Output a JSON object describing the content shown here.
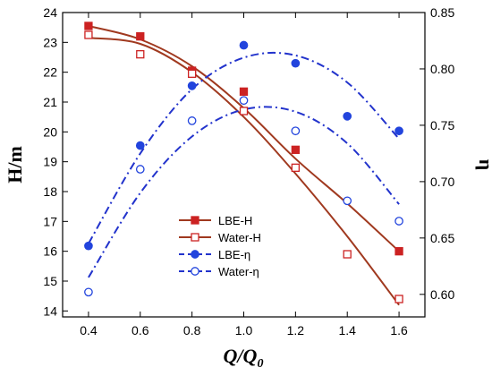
{
  "chart_data": {
    "type": "scatter",
    "title": "",
    "xlabel": "Q/Q",
    "xlabel_sub": "0",
    "ylabel_left": "H/m",
    "ylabel_right": "η",
    "xlim": [
      0.3,
      1.7
    ],
    "ylim_left": [
      13.8,
      24.0
    ],
    "ylim_right": [
      0.58,
      0.85
    ],
    "x_ticks": [
      "0.4",
      "0.6",
      "0.8",
      "1.0",
      "1.2",
      "1.4",
      "1.6"
    ],
    "y_left_ticks": [
      "14",
      "15",
      "16",
      "17",
      "18",
      "19",
      "20",
      "21",
      "22",
      "23",
      "24"
    ],
    "y_right_ticks": [
      "0.60",
      "0.65",
      "0.70",
      "0.75",
      "0.80",
      "0.85"
    ],
    "legend_position": "lower-center",
    "series": [
      {
        "name": "LBE-H",
        "axis": "left",
        "marker": "filled-square",
        "color": "#cc2222",
        "line_color": "#a0391f",
        "x": [
          0.4,
          0.6,
          0.8,
          1.0,
          1.2,
          1.6
        ],
        "y": [
          23.55,
          23.2,
          22.05,
          21.35,
          19.4,
          16.0
        ],
        "fit_x": [
          0.4,
          0.6,
          0.8,
          1.0,
          1.2,
          1.4,
          1.6
        ],
        "fit_y": [
          23.55,
          23.1,
          22.2,
          20.8,
          19.1,
          17.6,
          16.0
        ]
      },
      {
        "name": "Water-H",
        "axis": "left",
        "marker": "open-square",
        "color": "#cc2222",
        "line_color": "#a0391f",
        "x": [
          0.4,
          0.6,
          0.8,
          1.0,
          1.2,
          1.4,
          1.6
        ],
        "y": [
          23.25,
          22.6,
          21.95,
          20.7,
          18.8,
          15.9,
          14.4
        ],
        "fit_x": [
          0.4,
          0.6,
          0.8,
          1.0,
          1.2,
          1.4,
          1.6
        ],
        "fit_y": [
          23.15,
          22.95,
          22.0,
          20.5,
          18.6,
          16.5,
          14.2
        ]
      },
      {
        "name": "LBE-η",
        "axis": "right",
        "marker": "filled-circle",
        "color": "#2244dd",
        "line_color": "#2233cc",
        "x": [
          0.4,
          0.6,
          0.8,
          1.0,
          1.2,
          1.4,
          1.6
        ],
        "y": [
          0.643,
          0.732,
          0.785,
          0.821,
          0.805,
          0.758,
          0.745
        ],
        "fit_x": [
          0.4,
          0.6,
          0.8,
          1.0,
          1.2,
          1.4,
          1.6
        ],
        "fit_y": [
          0.645,
          0.725,
          0.782,
          0.81,
          0.812,
          0.788,
          0.738
        ]
      },
      {
        "name": "Water-η",
        "axis": "right",
        "marker": "open-circle",
        "color": "#2244dd",
        "line_color": "#2233cc",
        "x": [
          0.4,
          0.6,
          0.8,
          1.0,
          1.2,
          1.4,
          1.6
        ],
        "y": [
          0.602,
          0.711,
          0.754,
          0.772,
          0.745,
          0.683,
          0.665
        ],
        "fit_x": [
          0.4,
          0.6,
          0.8,
          1.0,
          1.2,
          1.4,
          1.6
        ],
        "fit_y": [
          0.615,
          0.69,
          0.74,
          0.764,
          0.762,
          0.734,
          0.68
        ]
      }
    ]
  }
}
